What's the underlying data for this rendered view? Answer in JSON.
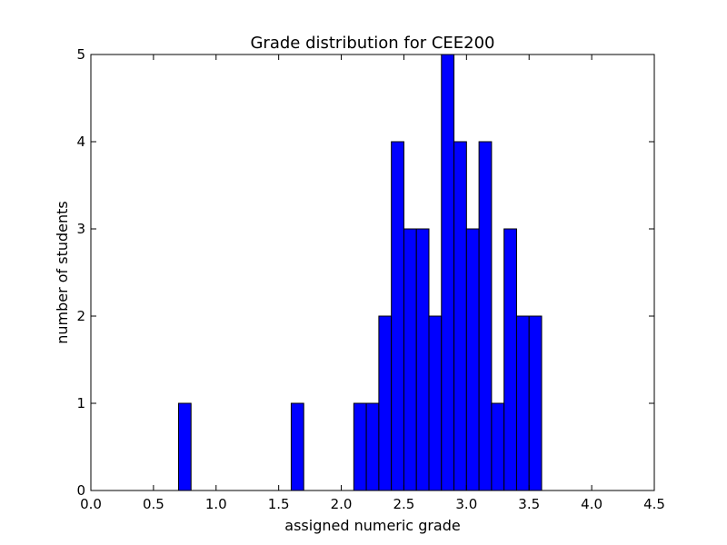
{
  "chart_data": {
    "type": "bar",
    "title": "Grade distribution for CEE200",
    "xlabel": "assigned numeric grade",
    "ylabel": "number of students",
    "xlim": [
      0.0,
      4.5
    ],
    "ylim": [
      0,
      5
    ],
    "xticks": [
      "0.0",
      "0.5",
      "1.0",
      "1.5",
      "2.0",
      "2.5",
      "3.0",
      "3.5",
      "4.0",
      "4.5"
    ],
    "yticks": [
      "0",
      "1",
      "2",
      "3",
      "4",
      "5"
    ],
    "grid": false,
    "bar_color": "#0000ff",
    "bins": [
      {
        "start": 0.7,
        "end": 0.8,
        "count": 1
      },
      {
        "start": 1.6,
        "end": 1.7,
        "count": 1
      },
      {
        "start": 2.1,
        "end": 2.2,
        "count": 1
      },
      {
        "start": 2.2,
        "end": 2.3,
        "count": 1
      },
      {
        "start": 2.3,
        "end": 2.4,
        "count": 2
      },
      {
        "start": 2.4,
        "end": 2.5,
        "count": 4
      },
      {
        "start": 2.5,
        "end": 2.6,
        "count": 3
      },
      {
        "start": 2.6,
        "end": 2.7,
        "count": 3
      },
      {
        "start": 2.7,
        "end": 2.8,
        "count": 2
      },
      {
        "start": 2.8,
        "end": 2.9,
        "count": 5
      },
      {
        "start": 2.9,
        "end": 3.0,
        "count": 4
      },
      {
        "start": 3.0,
        "end": 3.1,
        "count": 3
      },
      {
        "start": 3.1,
        "end": 3.2,
        "count": 4
      },
      {
        "start": 3.2,
        "end": 3.3,
        "count": 1
      },
      {
        "start": 3.3,
        "end": 3.4,
        "count": 3
      },
      {
        "start": 3.4,
        "end": 3.5,
        "count": 2
      },
      {
        "start": 3.5,
        "end": 3.6,
        "count": 2
      }
    ]
  }
}
